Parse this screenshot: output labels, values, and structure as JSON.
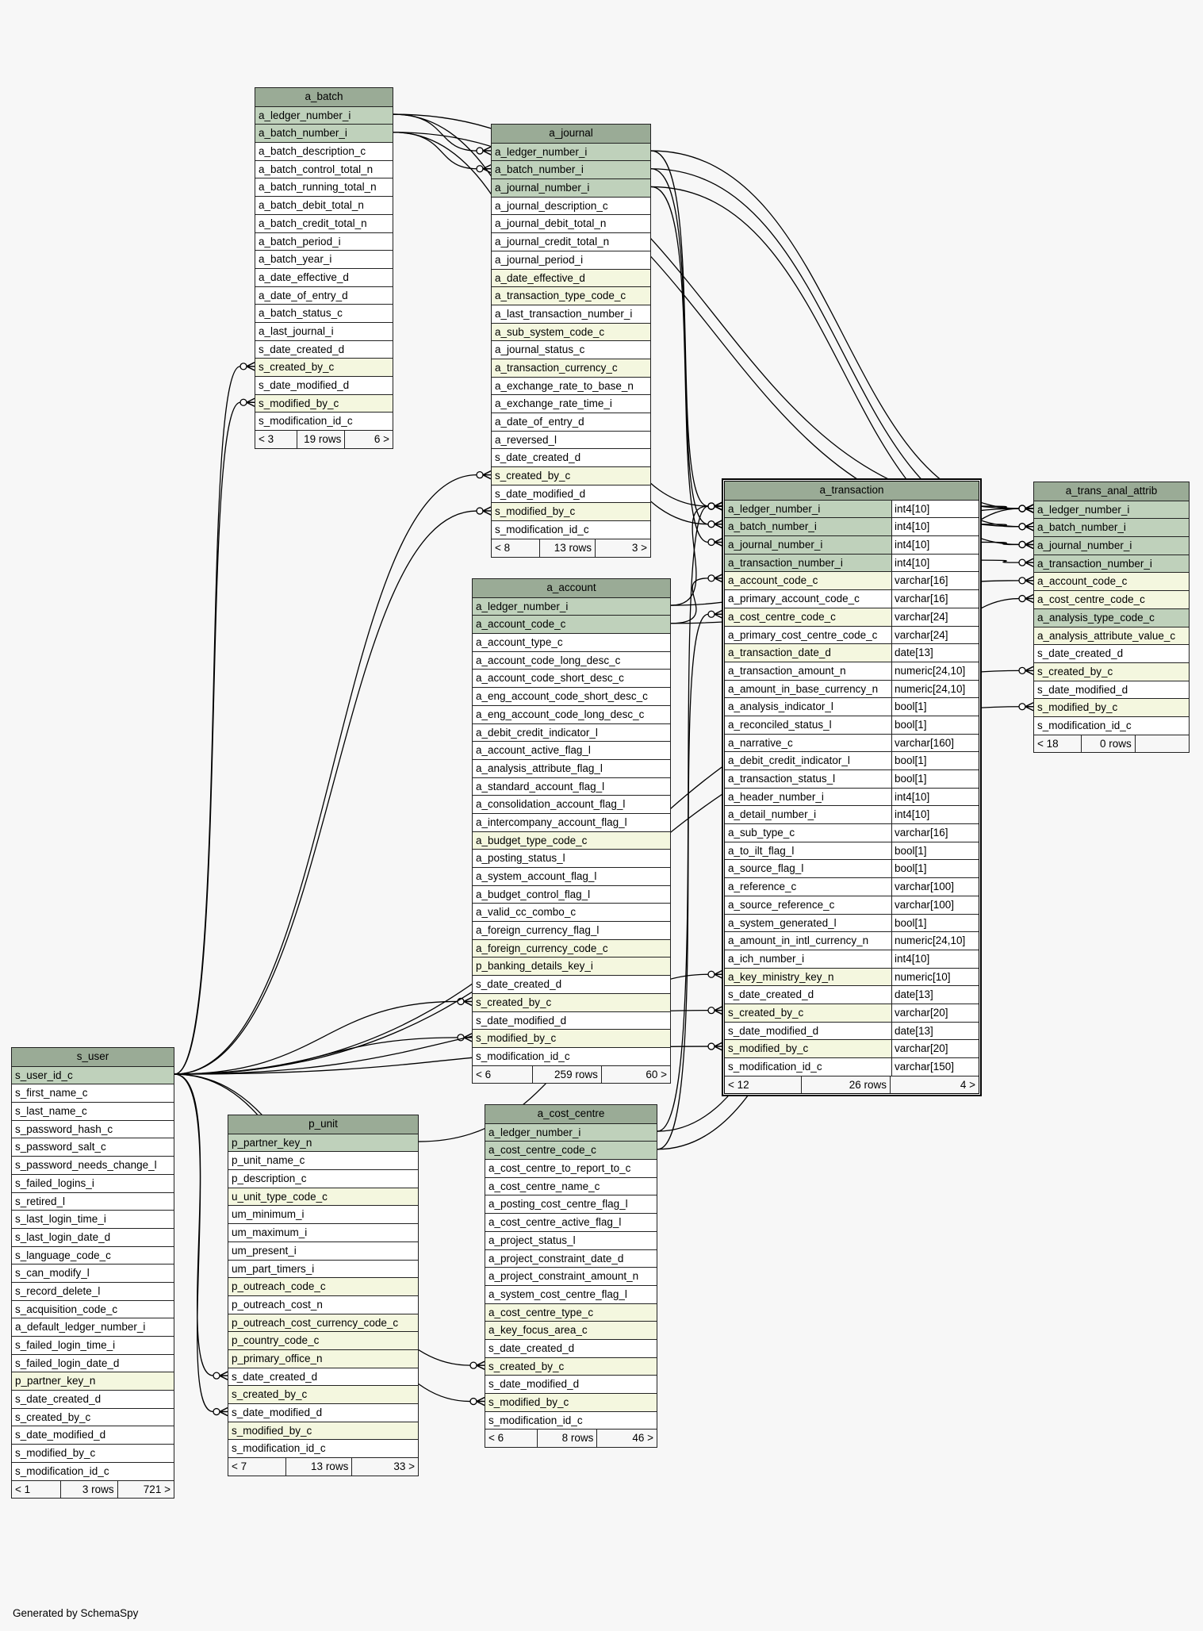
{
  "footer_text": "Generated by SchemaSpy",
  "colors": {
    "header": "#9aab96",
    "primary_key": "#bfd1bb",
    "foreign_key": "#f4f7df",
    "column": "#ffffff",
    "background": "#f7f7f7",
    "relationship_line": "#000000"
  },
  "tables": [
    {
      "name": "a_batch",
      "columns": [
        {
          "name": "a_ledger_number_i",
          "kind": "pk"
        },
        {
          "name": "a_batch_number_i",
          "kind": "pk"
        },
        {
          "name": "a_batch_description_c"
        },
        {
          "name": "a_batch_control_total_n"
        },
        {
          "name": "a_batch_running_total_n"
        },
        {
          "name": "a_batch_debit_total_n"
        },
        {
          "name": "a_batch_credit_total_n"
        },
        {
          "name": "a_batch_period_i"
        },
        {
          "name": "a_batch_year_i"
        },
        {
          "name": "a_date_effective_d"
        },
        {
          "name": "a_date_of_entry_d"
        },
        {
          "name": "a_batch_status_c"
        },
        {
          "name": "a_last_journal_i"
        },
        {
          "name": "s_date_created_d"
        },
        {
          "name": "s_created_by_c",
          "kind": "fk"
        },
        {
          "name": "s_date_modified_d"
        },
        {
          "name": "s_modified_by_c",
          "kind": "fk"
        },
        {
          "name": "s_modification_id_c"
        }
      ],
      "footer": {
        "parents": "< 3",
        "rows": "19 rows",
        "children": "6 >"
      }
    },
    {
      "name": "a_journal",
      "columns": [
        {
          "name": "a_ledger_number_i",
          "kind": "pk"
        },
        {
          "name": "a_batch_number_i",
          "kind": "pk"
        },
        {
          "name": "a_journal_number_i",
          "kind": "pk"
        },
        {
          "name": "a_journal_description_c"
        },
        {
          "name": "a_journal_debit_total_n"
        },
        {
          "name": "a_journal_credit_total_n"
        },
        {
          "name": "a_journal_period_i"
        },
        {
          "name": "a_date_effective_d",
          "kind": "fk"
        },
        {
          "name": "a_transaction_type_code_c",
          "kind": "fk"
        },
        {
          "name": "a_last_transaction_number_i"
        },
        {
          "name": "a_sub_system_code_c",
          "kind": "fk"
        },
        {
          "name": "a_journal_status_c"
        },
        {
          "name": "a_transaction_currency_c",
          "kind": "fk"
        },
        {
          "name": "a_exchange_rate_to_base_n"
        },
        {
          "name": "a_exchange_rate_time_i"
        },
        {
          "name": "a_date_of_entry_d"
        },
        {
          "name": "a_reversed_l"
        },
        {
          "name": "s_date_created_d"
        },
        {
          "name": "s_created_by_c",
          "kind": "fk"
        },
        {
          "name": "s_date_modified_d"
        },
        {
          "name": "s_modified_by_c",
          "kind": "fk"
        },
        {
          "name": "s_modification_id_c"
        }
      ],
      "footer": {
        "parents": "< 8",
        "rows": "13 rows",
        "children": "3 >"
      }
    },
    {
      "name": "a_account",
      "columns": [
        {
          "name": "a_ledger_number_i",
          "kind": "pk"
        },
        {
          "name": "a_account_code_c",
          "kind": "pk"
        },
        {
          "name": "a_account_type_c"
        },
        {
          "name": "a_account_code_long_desc_c"
        },
        {
          "name": "a_account_code_short_desc_c"
        },
        {
          "name": "a_eng_account_code_short_desc_c"
        },
        {
          "name": "a_eng_account_code_long_desc_c"
        },
        {
          "name": "a_debit_credit_indicator_l"
        },
        {
          "name": "a_account_active_flag_l"
        },
        {
          "name": "a_analysis_attribute_flag_l"
        },
        {
          "name": "a_standard_account_flag_l"
        },
        {
          "name": "a_consolidation_account_flag_l"
        },
        {
          "name": "a_intercompany_account_flag_l"
        },
        {
          "name": "a_budget_type_code_c",
          "kind": "fk"
        },
        {
          "name": "a_posting_status_l"
        },
        {
          "name": "a_system_account_flag_l"
        },
        {
          "name": "a_budget_control_flag_l"
        },
        {
          "name": "a_valid_cc_combo_c"
        },
        {
          "name": "a_foreign_currency_flag_l"
        },
        {
          "name": "a_foreign_currency_code_c",
          "kind": "fk"
        },
        {
          "name": "p_banking_details_key_i",
          "kind": "fk"
        },
        {
          "name": "s_date_created_d"
        },
        {
          "name": "s_created_by_c",
          "kind": "fk"
        },
        {
          "name": "s_date_modified_d"
        },
        {
          "name": "s_modified_by_c",
          "kind": "fk"
        },
        {
          "name": "s_modification_id_c"
        }
      ],
      "footer": {
        "parents": "< 6",
        "rows": "259 rows",
        "children": "60 >"
      }
    },
    {
      "name": "a_transaction",
      "focus": true,
      "columns": [
        {
          "name": "a_ledger_number_i",
          "type": "int4[10]",
          "kind": "pk"
        },
        {
          "name": "a_batch_number_i",
          "type": "int4[10]",
          "kind": "pk"
        },
        {
          "name": "a_journal_number_i",
          "type": "int4[10]",
          "kind": "pk"
        },
        {
          "name": "a_transaction_number_i",
          "type": "int4[10]",
          "kind": "pk"
        },
        {
          "name": "a_account_code_c",
          "type": "varchar[16]",
          "kind": "fk"
        },
        {
          "name": "a_primary_account_code_c",
          "type": "varchar[16]"
        },
        {
          "name": "a_cost_centre_code_c",
          "type": "varchar[24]",
          "kind": "fk"
        },
        {
          "name": "a_primary_cost_centre_code_c",
          "type": "varchar[24]"
        },
        {
          "name": "a_transaction_date_d",
          "type": "date[13]",
          "kind": "fk"
        },
        {
          "name": "a_transaction_amount_n",
          "type": "numeric[24,10]"
        },
        {
          "name": "a_amount_in_base_currency_n",
          "type": "numeric[24,10]"
        },
        {
          "name": "a_analysis_indicator_l",
          "type": "bool[1]"
        },
        {
          "name": "a_reconciled_status_l",
          "type": "bool[1]"
        },
        {
          "name": "a_narrative_c",
          "type": "varchar[160]"
        },
        {
          "name": "a_debit_credit_indicator_l",
          "type": "bool[1]"
        },
        {
          "name": "a_transaction_status_l",
          "type": "bool[1]"
        },
        {
          "name": "a_header_number_i",
          "type": "int4[10]"
        },
        {
          "name": "a_detail_number_i",
          "type": "int4[10]"
        },
        {
          "name": "a_sub_type_c",
          "type": "varchar[16]"
        },
        {
          "name": "a_to_ilt_flag_l",
          "type": "bool[1]"
        },
        {
          "name": "a_source_flag_l",
          "type": "bool[1]"
        },
        {
          "name": "a_reference_c",
          "type": "varchar[100]"
        },
        {
          "name": "a_source_reference_c",
          "type": "varchar[100]"
        },
        {
          "name": "a_system_generated_l",
          "type": "bool[1]"
        },
        {
          "name": "a_amount_in_intl_currency_n",
          "type": "numeric[24,10]"
        },
        {
          "name": "a_ich_number_i",
          "type": "int4[10]"
        },
        {
          "name": "a_key_ministry_key_n",
          "type": "numeric[10]",
          "kind": "fk"
        },
        {
          "name": "s_date_created_d",
          "type": "date[13]"
        },
        {
          "name": "s_created_by_c",
          "type": "varchar[20]",
          "kind": "fk"
        },
        {
          "name": "s_date_modified_d",
          "type": "date[13]"
        },
        {
          "name": "s_modified_by_c",
          "type": "varchar[20]",
          "kind": "fk"
        },
        {
          "name": "s_modification_id_c",
          "type": "varchar[150]"
        }
      ],
      "footer": {
        "parents": "< 12",
        "rows": "26 rows",
        "children": "4 >"
      }
    },
    {
      "name": "a_trans_anal_attrib",
      "columns": [
        {
          "name": "a_ledger_number_i",
          "kind": "pk"
        },
        {
          "name": "a_batch_number_i",
          "kind": "pk"
        },
        {
          "name": "a_journal_number_i",
          "kind": "pk"
        },
        {
          "name": "a_transaction_number_i",
          "kind": "pk"
        },
        {
          "name": "a_account_code_c",
          "kind": "fk"
        },
        {
          "name": "a_cost_centre_code_c",
          "kind": "fk"
        },
        {
          "name": "a_analysis_type_code_c",
          "kind": "pk"
        },
        {
          "name": "a_analysis_attribute_value_c",
          "kind": "fk"
        },
        {
          "name": "s_date_created_d"
        },
        {
          "name": "s_created_by_c",
          "kind": "fk"
        },
        {
          "name": "s_date_modified_d"
        },
        {
          "name": "s_modified_by_c",
          "kind": "fk"
        },
        {
          "name": "s_modification_id_c"
        }
      ],
      "footer": {
        "parents": "< 18",
        "rows": "0 rows",
        "children": ""
      }
    },
    {
      "name": "a_cost_centre",
      "columns": [
        {
          "name": "a_ledger_number_i",
          "kind": "pk"
        },
        {
          "name": "a_cost_centre_code_c",
          "kind": "pk"
        },
        {
          "name": "a_cost_centre_to_report_to_c"
        },
        {
          "name": "a_cost_centre_name_c"
        },
        {
          "name": "a_posting_cost_centre_flag_l"
        },
        {
          "name": "a_cost_centre_active_flag_l"
        },
        {
          "name": "a_project_status_l"
        },
        {
          "name": "a_project_constraint_date_d"
        },
        {
          "name": "a_project_constraint_amount_n"
        },
        {
          "name": "a_system_cost_centre_flag_l"
        },
        {
          "name": "a_cost_centre_type_c",
          "kind": "fk"
        },
        {
          "name": "a_key_focus_area_c",
          "kind": "fk"
        },
        {
          "name": "s_date_created_d"
        },
        {
          "name": "s_created_by_c",
          "kind": "fk"
        },
        {
          "name": "s_date_modified_d"
        },
        {
          "name": "s_modified_by_c",
          "kind": "fk"
        },
        {
          "name": "s_modification_id_c"
        }
      ],
      "footer": {
        "parents": "< 6",
        "rows": "8 rows",
        "children": "46 >"
      }
    },
    {
      "name": "p_unit",
      "columns": [
        {
          "name": "p_partner_key_n",
          "kind": "pk"
        },
        {
          "name": "p_unit_name_c"
        },
        {
          "name": "p_description_c"
        },
        {
          "name": "u_unit_type_code_c",
          "kind": "fk"
        },
        {
          "name": "um_minimum_i"
        },
        {
          "name": "um_maximum_i"
        },
        {
          "name": "um_present_i"
        },
        {
          "name": "um_part_timers_i"
        },
        {
          "name": "p_outreach_code_c",
          "kind": "fk"
        },
        {
          "name": "p_outreach_cost_n"
        },
        {
          "name": "p_outreach_cost_currency_code_c",
          "kind": "fk"
        },
        {
          "name": "p_country_code_c",
          "kind": "fk"
        },
        {
          "name": "p_primary_office_n",
          "kind": "fk"
        },
        {
          "name": "s_date_created_d"
        },
        {
          "name": "s_created_by_c",
          "kind": "fk"
        },
        {
          "name": "s_date_modified_d"
        },
        {
          "name": "s_modified_by_c",
          "kind": "fk"
        },
        {
          "name": "s_modification_id_c"
        }
      ],
      "footer": {
        "parents": "< 7",
        "rows": "13 rows",
        "children": "33 >"
      }
    },
    {
      "name": "s_user",
      "columns": [
        {
          "name": "s_user_id_c",
          "kind": "pk"
        },
        {
          "name": "s_first_name_c"
        },
        {
          "name": "s_last_name_c"
        },
        {
          "name": "s_password_hash_c"
        },
        {
          "name": "s_password_salt_c"
        },
        {
          "name": "s_password_needs_change_l"
        },
        {
          "name": "s_failed_logins_i"
        },
        {
          "name": "s_retired_l"
        },
        {
          "name": "s_last_login_time_i"
        },
        {
          "name": "s_last_login_date_d"
        },
        {
          "name": "s_language_code_c"
        },
        {
          "name": "s_can_modify_l"
        },
        {
          "name": "s_record_delete_l"
        },
        {
          "name": "s_acquisition_code_c"
        },
        {
          "name": "a_default_ledger_number_i"
        },
        {
          "name": "s_failed_login_time_i"
        },
        {
          "name": "s_failed_login_date_d"
        },
        {
          "name": "p_partner_key_n",
          "kind": "fk"
        },
        {
          "name": "s_date_created_d"
        },
        {
          "name": "s_created_by_c"
        },
        {
          "name": "s_date_modified_d"
        },
        {
          "name": "s_modified_by_c"
        },
        {
          "name": "s_modification_id_c"
        }
      ],
      "footer": {
        "parents": "< 1",
        "rows": "3 rows",
        "children": "721 >"
      }
    }
  ]
}
